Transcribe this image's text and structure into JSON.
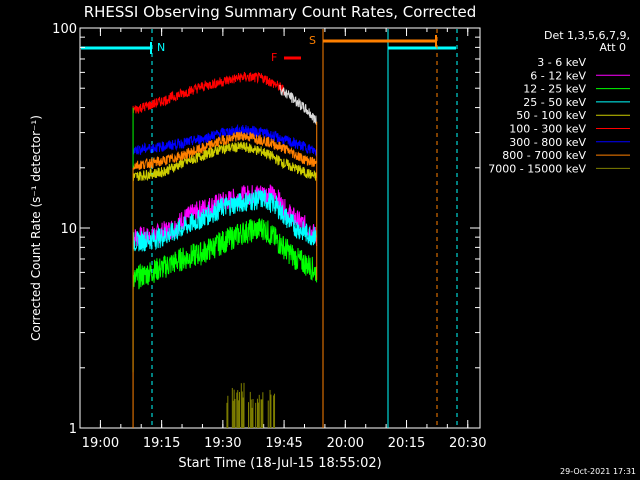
{
  "chart_data": {
    "type": "line",
    "title": "RHESSI Observing Summary Count Rates, Corrected",
    "xlabel": "Start Time (18-Jul-15 18:55:02)",
    "ylabel": "Corrected Count Rate (s⁻¹ detector⁻¹)",
    "y_scale": "log",
    "ylim": [
      1,
      100
    ],
    "xlim": [
      "18:55",
      "20:33"
    ],
    "x_ticks": [
      "19:00",
      "19:15",
      "19:30",
      "19:45",
      "20:00",
      "20:15",
      "20:30"
    ],
    "y_ticks": [
      "1",
      "10",
      "100"
    ],
    "legend_position": "top-right",
    "legend_header": [
      "Det 1,3,5,6,7,9,",
      "Att 0"
    ],
    "footer_date": "29-Oct-2021 17:31",
    "series": [
      {
        "name": "3 - 6 keV",
        "color": "#000000",
        "x": [
          "19:08",
          "19:15",
          "19:20",
          "19:25",
          "19:30",
          "19:35",
          "19:40",
          "19:45",
          "19:48",
          "19:51",
          "19:53"
        ],
        "values": [
          38,
          41,
          45,
          50,
          54,
          57,
          56,
          48,
          43,
          38,
          34
        ]
      },
      {
        "name": "6 - 12 keV",
        "color": "#ff00ff",
        "x": [
          "19:08",
          "19:12",
          "19:15",
          "19:18",
          "19:20",
          "19:25",
          "19:30",
          "19:35",
          "19:40",
          "19:43",
          "19:45",
          "19:48",
          "19:51",
          "19:53"
        ],
        "values": [
          9,
          9,
          9.5,
          10,
          11,
          12.5,
          13.5,
          14.5,
          15,
          14.5,
          12.5,
          11,
          10,
          9
        ]
      },
      {
        "name": "12 - 25 keV",
        "color": "#00ff00",
        "x": [
          "19:08",
          "19:12",
          "19:15",
          "19:20",
          "19:25",
          "19:30",
          "19:35",
          "19:40",
          "19:45",
          "19:48",
          "19:51",
          "19:53"
        ],
        "values": [
          5.5,
          6,
          6.3,
          7,
          7.5,
          8.5,
          9.5,
          10,
          8,
          7,
          6.5,
          6
        ]
      },
      {
        "name": "25 - 50 keV",
        "color": "#00ffff",
        "x": [
          "19:08",
          "19:12",
          "19:15",
          "19:18",
          "19:20",
          "19:25",
          "19:30",
          "19:35",
          "19:40",
          "19:43",
          "19:45",
          "19:48",
          "19:51",
          "19:53"
        ],
        "values": [
          8.5,
          8.7,
          9,
          9.5,
          10,
          11.2,
          12.7,
          13.5,
          14,
          13,
          11.5,
          10,
          9.3,
          9
        ]
      },
      {
        "name": "50 - 100 keV",
        "color": "#cccc00",
        "x": [
          "19:08",
          "19:15",
          "19:20",
          "19:25",
          "19:30",
          "19:35",
          "19:40",
          "19:45",
          "19:50",
          "19:53"
        ],
        "values": [
          18,
          19,
          21,
          23,
          25,
          25.5,
          24,
          21,
          19,
          18
        ]
      },
      {
        "name": "100 - 300 keV",
        "color": "#ff0000",
        "x": [
          "19:08",
          "19:12",
          "19:15",
          "19:20",
          "19:25",
          "19:30",
          "19:35",
          "19:40",
          "19:43",
          "19:45"
        ],
        "values": [
          39,
          41,
          43,
          47,
          51,
          54,
          57,
          56,
          52,
          49
        ]
      },
      {
        "name": "300 - 800 keV",
        "color": "#0000ff",
        "x": [
          "19:08",
          "19:15",
          "19:20",
          "19:25",
          "19:30",
          "19:35",
          "19:40",
          "19:45",
          "19:50",
          "19:53"
        ],
        "values": [
          24.5,
          25.5,
          26.5,
          28,
          30,
          31,
          30,
          27.5,
          25.5,
          24
        ]
      },
      {
        "name": "800 - 7000 keV",
        "color": "#ff8000",
        "x": [
          "19:08",
          "19:15",
          "19:20",
          "19:25",
          "19:30",
          "19:35",
          "19:40",
          "19:45",
          "19:50",
          "19:53"
        ],
        "values": [
          20.5,
          21.5,
          23,
          25,
          27.5,
          29,
          27.5,
          25,
          22,
          21
        ]
      },
      {
        "name": "7000 - 15000 keV",
        "color": "#808000",
        "x": [
          "19:33",
          "19:35",
          "19:38",
          "19:40"
        ],
        "values": [
          1.45,
          1.55,
          1.3,
          1.5
        ]
      }
    ],
    "annotations": [
      {
        "label": "N",
        "color": "#00ffff"
      },
      {
        "label": "S",
        "color": "#ff8000"
      },
      {
        "label": "F",
        "color": "#ff0000"
      }
    ]
  }
}
